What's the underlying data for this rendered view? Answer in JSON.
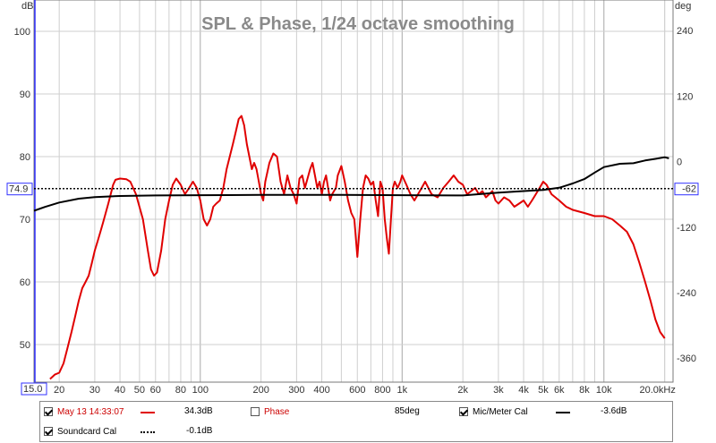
{
  "chart_data": {
    "type": "line",
    "title": "SPL & Phase, 1/24 octave smoothing",
    "x_axis": {
      "scale": "log",
      "range": [
        15,
        22000
      ],
      "tick_labels": [
        {
          "v": 20,
          "t": "20"
        },
        {
          "v": 30,
          "t": "30"
        },
        {
          "v": 40,
          "t": "40"
        },
        {
          "v": 50,
          "t": "50"
        },
        {
          "v": 60,
          "t": "60"
        },
        {
          "v": 80,
          "t": "80"
        },
        {
          "v": 100,
          "t": "100"
        },
        {
          "v": 200,
          "t": "200"
        },
        {
          "v": 300,
          "t": "300"
        },
        {
          "v": 400,
          "t": "400"
        },
        {
          "v": 600,
          "t": "600"
        },
        {
          "v": 800,
          "t": "800"
        },
        {
          "v": 1000,
          "t": "1k"
        },
        {
          "v": 2000,
          "t": "2k"
        },
        {
          "v": 3000,
          "t": "3k"
        },
        {
          "v": 4000,
          "t": "4k"
        },
        {
          "v": 5000,
          "t": "5k"
        },
        {
          "v": 6000,
          "t": "6k"
        },
        {
          "v": 8000,
          "t": "8k"
        },
        {
          "v": 10000,
          "t": "10k"
        },
        {
          "v": 20000,
          "t": "20.0kHz"
        }
      ],
      "left_marker": "15.0"
    },
    "y_left": {
      "unit": "dB",
      "range": [
        44,
        105
      ],
      "ticks": [
        50,
        60,
        70,
        80,
        90,
        100
      ],
      "marker": "74.9"
    },
    "y_right": {
      "unit": "deg",
      "range": [
        -404,
        296
      ],
      "ticks": [
        240,
        120,
        0,
        -120,
        -240,
        -360
      ],
      "marker": "-62"
    },
    "grid": true,
    "series": [
      {
        "name": "May 13 14:33:07",
        "axis": "left",
        "color": "#e00000",
        "points": [
          [
            18,
            44.5
          ],
          [
            19,
            45.2
          ],
          [
            20,
            45.5
          ],
          [
            21,
            47
          ],
          [
            22,
            49.5
          ],
          [
            23,
            52
          ],
          [
            24,
            54.5
          ],
          [
            25,
            57
          ],
          [
            26,
            59
          ],
          [
            27,
            60
          ],
          [
            28,
            61
          ],
          [
            29,
            63
          ],
          [
            30,
            65
          ],
          [
            31,
            66.5
          ],
          [
            32,
            68
          ],
          [
            33,
            69.5
          ],
          [
            34,
            71
          ],
          [
            35,
            72.5
          ],
          [
            36,
            74
          ],
          [
            37,
            75.5
          ],
          [
            38,
            76.3
          ],
          [
            40,
            76.5
          ],
          [
            43,
            76.4
          ],
          [
            45,
            76
          ],
          [
            48,
            74
          ],
          [
            52,
            70
          ],
          [
            55,
            65
          ],
          [
            57,
            62
          ],
          [
            59,
            61
          ],
          [
            61,
            61.5
          ],
          [
            64,
            65
          ],
          [
            67,
            70
          ],
          [
            70,
            73
          ],
          [
            73,
            75.5
          ],
          [
            76,
            76.5
          ],
          [
            80,
            75.5
          ],
          [
            84,
            74
          ],
          [
            88,
            75
          ],
          [
            92,
            76
          ],
          [
            96,
            75
          ],
          [
            100,
            73
          ],
          [
            104,
            70
          ],
          [
            108,
            69
          ],
          [
            112,
            70
          ],
          [
            116,
            72
          ],
          [
            120,
            72.5
          ],
          [
            125,
            73
          ],
          [
            130,
            75
          ],
          [
            135,
            78
          ],
          [
            140,
            80
          ],
          [
            145,
            82
          ],
          [
            150,
            84
          ],
          [
            155,
            86
          ],
          [
            160,
            86.5
          ],
          [
            165,
            85
          ],
          [
            170,
            82
          ],
          [
            175,
            80
          ],
          [
            180,
            78
          ],
          [
            185,
            79
          ],
          [
            190,
            78
          ],
          [
            195,
            76
          ],
          [
            200,
            74
          ],
          [
            205,
            73
          ],
          [
            210,
            76
          ],
          [
            220,
            79
          ],
          [
            230,
            80.5
          ],
          [
            240,
            80
          ],
          [
            250,
            76
          ],
          [
            260,
            74
          ],
          [
            270,
            77
          ],
          [
            280,
            75
          ],
          [
            290,
            74
          ],
          [
            300,
            72.5
          ],
          [
            310,
            76.5
          ],
          [
            320,
            77
          ],
          [
            330,
            75
          ],
          [
            340,
            76.5
          ],
          [
            350,
            78
          ],
          [
            360,
            79
          ],
          [
            370,
            77
          ],
          [
            380,
            75
          ],
          [
            390,
            76
          ],
          [
            400,
            74
          ],
          [
            410,
            76
          ],
          [
            420,
            77
          ],
          [
            430,
            75
          ],
          [
            440,
            73
          ],
          [
            450,
            74
          ],
          [
            470,
            75
          ],
          [
            480,
            77
          ],
          [
            500,
            78.5
          ],
          [
            520,
            76
          ],
          [
            540,
            73
          ],
          [
            560,
            71
          ],
          [
            580,
            70
          ],
          [
            600,
            64
          ],
          [
            620,
            70
          ],
          [
            640,
            75
          ],
          [
            660,
            77
          ],
          [
            680,
            76.5
          ],
          [
            700,
            75.5
          ],
          [
            720,
            76
          ],
          [
            740,
            73
          ],
          [
            760,
            70.5
          ],
          [
            780,
            76
          ],
          [
            800,
            75
          ],
          [
            820,
            70
          ],
          [
            840,
            67
          ],
          [
            860,
            64.5
          ],
          [
            880,
            70
          ],
          [
            900,
            75
          ],
          [
            920,
            76
          ],
          [
            950,
            75
          ],
          [
            980,
            76
          ],
          [
            1000,
            77
          ],
          [
            1050,
            75.5
          ],
          [
            1100,
            74
          ],
          [
            1150,
            73
          ],
          [
            1200,
            74
          ],
          [
            1250,
            75
          ],
          [
            1300,
            76
          ],
          [
            1400,
            74
          ],
          [
            1500,
            73.5
          ],
          [
            1600,
            75
          ],
          [
            1700,
            76
          ],
          [
            1800,
            77
          ],
          [
            1900,
            76
          ],
          [
            2000,
            75.5
          ],
          [
            2100,
            74
          ],
          [
            2200,
            74.5
          ],
          [
            2300,
            75
          ],
          [
            2400,
            74
          ],
          [
            2500,
            74.5
          ],
          [
            2600,
            73.5
          ],
          [
            2700,
            74
          ],
          [
            2800,
            74.5
          ],
          [
            2900,
            73
          ],
          [
            3000,
            72.5
          ],
          [
            3200,
            73.5
          ],
          [
            3400,
            73
          ],
          [
            3600,
            72
          ],
          [
            3800,
            72.5
          ],
          [
            4000,
            73
          ],
          [
            4200,
            72
          ],
          [
            4400,
            73
          ],
          [
            4600,
            74
          ],
          [
            4800,
            75
          ],
          [
            5000,
            76
          ],
          [
            5200,
            75.5
          ],
          [
            5500,
            74
          ],
          [
            6000,
            73
          ],
          [
            6500,
            72
          ],
          [
            7000,
            71.5
          ],
          [
            8000,
            71
          ],
          [
            9000,
            70.5
          ],
          [
            10000,
            70.5
          ],
          [
            11000,
            70
          ],
          [
            12000,
            69
          ],
          [
            13000,
            68
          ],
          [
            14000,
            66
          ],
          [
            15000,
            63
          ],
          [
            16000,
            60
          ],
          [
            17000,
            57
          ],
          [
            18000,
            54
          ],
          [
            19000,
            52
          ],
          [
            20000,
            51
          ]
        ]
      },
      {
        "name": "Mic/Meter Cal",
        "axis": "right",
        "color": "#000000",
        "points": [
          [
            15,
            -90
          ],
          [
            17,
            -83
          ],
          [
            20,
            -75
          ],
          [
            25,
            -68
          ],
          [
            30,
            -65
          ],
          [
            40,
            -63
          ],
          [
            60,
            -62
          ],
          [
            100,
            -61.5
          ],
          [
            200,
            -61
          ],
          [
            500,
            -61
          ],
          [
            1000,
            -61.5
          ],
          [
            2000,
            -62
          ],
          [
            3000,
            -57
          ],
          [
            4000,
            -54
          ],
          [
            5000,
            -52
          ],
          [
            6000,
            -48
          ],
          [
            7000,
            -40
          ],
          [
            8000,
            -32
          ],
          [
            9000,
            -20
          ],
          [
            10000,
            -10
          ],
          [
            12000,
            -4
          ],
          [
            14000,
            -3
          ],
          [
            16000,
            2
          ],
          [
            18000,
            5
          ],
          [
            20000,
            8
          ],
          [
            21000,
            6
          ]
        ]
      },
      {
        "name": "Soundcard Cal",
        "axis": "left",
        "color": "#000000",
        "dashed": true,
        "points": [
          [
            15,
            74.9
          ],
          [
            22000,
            74.9
          ]
        ]
      },
      {
        "name": "Phase",
        "axis": "right",
        "visible": false,
        "points": []
      }
    ]
  },
  "legend": [
    {
      "label": "May 13 14:33:07",
      "value": "34.3dB",
      "checked": true,
      "label_color": "#cc0000",
      "swatch_color": "#e00000",
      "swatch_style": "solid"
    },
    {
      "label": "Phase",
      "value": "85deg",
      "checked": false,
      "label_color": "#cc0000",
      "swatch_color": "",
      "swatch_style": "none"
    },
    {
      "label": "Mic/Meter Cal",
      "value": "-3.6dB",
      "checked": true,
      "label_color": "#000000",
      "swatch_color": "#000000",
      "swatch_style": "solid"
    },
    {
      "label": "Soundcard Cal",
      "value": "-0.1dB",
      "checked": true,
      "label_color": "#000000",
      "swatch_color": "#000000",
      "swatch_style": "dotted"
    }
  ]
}
